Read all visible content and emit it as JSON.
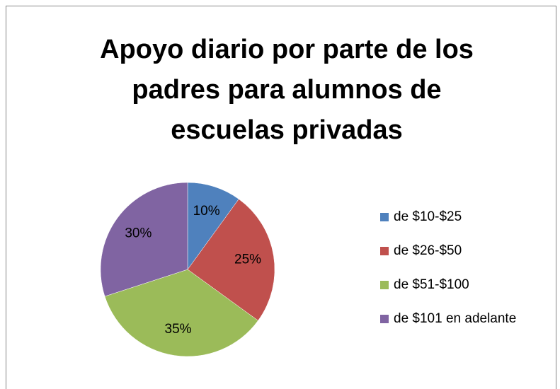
{
  "chart_data": {
    "type": "pie",
    "title": [
      "Apoyo diario por parte de los",
      "padres para alumnos de",
      "escuelas privadas"
    ],
    "categories": [
      "de $10-$25",
      "de $26-$50",
      "de $51-$100",
      "de $101 en adelante"
    ],
    "values": [
      10,
      25,
      35,
      30
    ],
    "value_labels": [
      "10%",
      "25%",
      "35%",
      "30%"
    ],
    "colors": [
      "#4f81bd",
      "#c0504d",
      "#9bbb59",
      "#8064a2"
    ],
    "legend": "right"
  }
}
